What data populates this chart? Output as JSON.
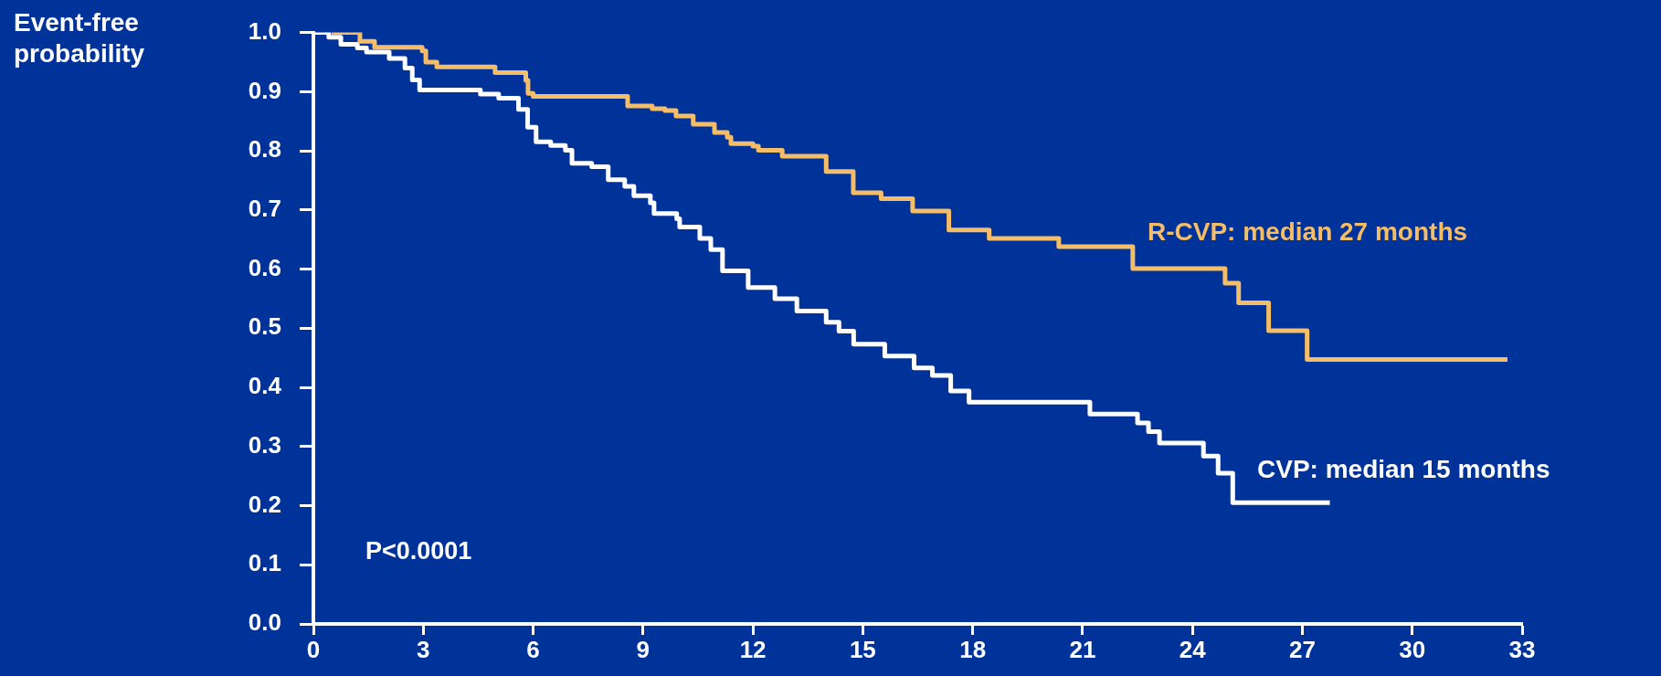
{
  "chart_data": {
    "type": "step",
    "ylabel": "Event-free probability",
    "annotations": [
      "P<0.0001"
    ],
    "xlim": [
      0,
      33
    ],
    "xticks": [
      0,
      3,
      6,
      9,
      12,
      15,
      18,
      21,
      24,
      27,
      30,
      33
    ],
    "ylim": [
      0,
      1
    ],
    "yticks": [
      {
        "value": 0,
        "label": "0.0"
      },
      0.1,
      0.2,
      0.3,
      0.4,
      0.5,
      0.6,
      0.7,
      0.8,
      0.9,
      {
        "value": 1,
        "label": "1.0"
      }
    ],
    "grid": false,
    "legend": false,
    "marker": "none",
    "line_style": "solid",
    "series": [
      {
        "name": "R-CVP: median 27 months",
        "color": "#f5bd67",
        "x": [
          0.5,
          1.27,
          1.67,
          2.97,
          3.07,
          3.37,
          4.96,
          5.8,
          5.86,
          6.0,
          8.58,
          9.25,
          9.6,
          9.9,
          10.37,
          10.95,
          11.3,
          11.4,
          12.0,
          12.15,
          12.8,
          14.0,
          14.74,
          15.5,
          16.36,
          17.35,
          18.45,
          20.35,
          22.37,
          24.89,
          25.26,
          26.08,
          27.13,
          32.6
        ],
        "values": [
          1.0,
          0.985,
          0.975,
          0.969,
          0.95,
          0.942,
          0.932,
          0.919,
          0.897,
          0.892,
          0.876,
          0.871,
          0.868,
          0.859,
          0.845,
          0.831,
          0.823,
          0.812,
          0.808,
          0.801,
          0.791,
          0.765,
          0.729,
          0.719,
          0.698,
          0.666,
          0.652,
          0.638,
          0.601,
          0.576,
          0.543,
          0.496,
          0.447,
          0.447
        ]
      },
      {
        "name": "CVP: median 15 months",
        "color": "#ffffff",
        "x": [
          0,
          0.42,
          0.75,
          1.2,
          1.45,
          2.07,
          2.5,
          2.7,
          2.9,
          4.56,
          5.06,
          5.6,
          5.85,
          6.08,
          6.48,
          6.88,
          7.06,
          7.6,
          8.05,
          8.5,
          8.75,
          9.2,
          9.3,
          9.92,
          10.0,
          10.55,
          10.85,
          11.17,
          11.87,
          12.6,
          13.2,
          14.0,
          14.35,
          14.75,
          15.6,
          16.4,
          16.9,
          17.4,
          17.9,
          21.2,
          22.5,
          22.8,
          23.1,
          24.3,
          24.7,
          25.1,
          27.75
        ],
        "values": [
          1.0,
          0.992,
          0.98,
          0.974,
          0.967,
          0.956,
          0.94,
          0.92,
          0.903,
          0.896,
          0.889,
          0.87,
          0.84,
          0.815,
          0.809,
          0.801,
          0.779,
          0.773,
          0.751,
          0.74,
          0.724,
          0.712,
          0.694,
          0.685,
          0.671,
          0.652,
          0.633,
          0.597,
          0.569,
          0.55,
          0.529,
          0.51,
          0.495,
          0.473,
          0.453,
          0.433,
          0.42,
          0.394,
          0.375,
          0.355,
          0.34,
          0.325,
          0.306,
          0.284,
          0.255,
          0.205,
          0.205
        ]
      }
    ]
  }
}
